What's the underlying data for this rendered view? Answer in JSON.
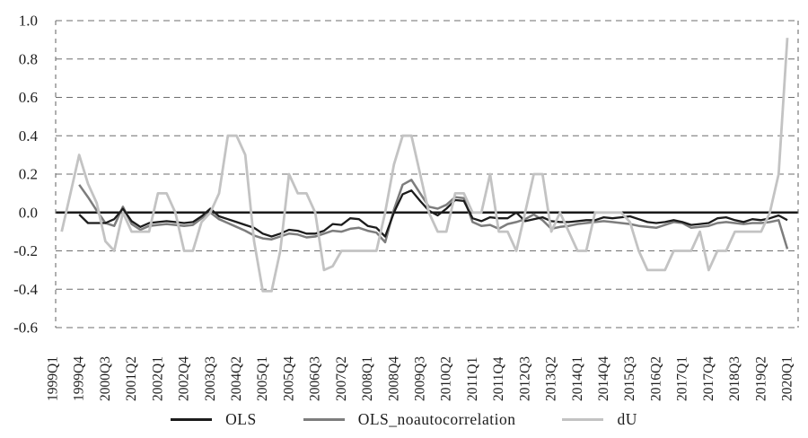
{
  "chart_data": {
    "type": "line",
    "title": "",
    "x_axis": {
      "tick_every": 3,
      "n_points": 85,
      "first_period": "1999Q1",
      "last_period": "2020Q1",
      "tick_labels": [
        "1999Q1",
        "1999Q4",
        "2000Q3",
        "2001Q2",
        "2002Q1",
        "2002Q4",
        "2003Q3",
        "2004Q2",
        "2005Q1",
        "2005Q4",
        "2006Q3",
        "2007Q2",
        "2008Q1",
        "2008Q4",
        "2009Q3",
        "2010Q2",
        "2011Q1",
        "2011Q4",
        "2012Q3",
        "2013Q2",
        "2014Q1",
        "2014Q4",
        "2015Q3",
        "2016Q2",
        "2017Q1",
        "2017Q4",
        "2018Q3",
        "2019Q2",
        "2020Q1"
      ]
    },
    "y_axis": {
      "min": -0.6,
      "max": 1.0,
      "tick_step": 0.2,
      "tick_labels": [
        "1.0",
        "0.8",
        "0.6",
        "0.4",
        "0.2",
        "0.0",
        "-0.2",
        "-0.4",
        "-0.6"
      ]
    },
    "grid": "dashed-horizontal-with-dashed-frame",
    "zero_line": true,
    "legend_position": "bottom",
    "colors": {
      "grid": "#6e6e6e",
      "zero_line": "#1a1a1a",
      "text": "#1c1c1c"
    },
    "series": [
      {
        "name": "OLS_noautocorrelation",
        "color": "#7d7d7d",
        "stroke_width": 2.5,
        "values": [
          null,
          null,
          null,
          0.145,
          0.08,
          0.01,
          -0.055,
          -0.07,
          0.03,
          -0.06,
          -0.09,
          -0.07,
          -0.065,
          -0.06,
          -0.065,
          -0.07,
          -0.065,
          -0.03,
          0.0,
          -0.035,
          -0.055,
          -0.075,
          -0.095,
          -0.12,
          -0.135,
          -0.14,
          -0.125,
          -0.11,
          -0.115,
          -0.13,
          -0.125,
          -0.11,
          -0.095,
          -0.1,
          -0.085,
          -0.08,
          -0.095,
          -0.105,
          -0.155,
          0.015,
          0.145,
          0.17,
          0.1,
          0.03,
          0.02,
          0.04,
          0.08,
          0.075,
          -0.05,
          -0.07,
          -0.065,
          -0.085,
          -0.06,
          -0.05,
          -0.035,
          -0.01,
          -0.04,
          -0.085,
          -0.075,
          -0.07,
          -0.06,
          -0.055,
          -0.05,
          -0.045,
          -0.05,
          -0.055,
          -0.06,
          -0.07,
          -0.075,
          -0.08,
          -0.065,
          -0.05,
          -0.055,
          -0.08,
          -0.075,
          -0.07,
          -0.055,
          -0.05,
          -0.055,
          -0.06,
          -0.055,
          -0.055,
          -0.05,
          -0.04,
          -0.19
        ]
      },
      {
        "name": "OLS",
        "color": "#1c1c1c",
        "stroke_width": 2.3,
        "values": [
          null,
          null,
          null,
          -0.01,
          -0.055,
          -0.055,
          -0.055,
          -0.035,
          0.02,
          -0.045,
          -0.075,
          -0.055,
          -0.05,
          -0.045,
          -0.05,
          -0.055,
          -0.05,
          -0.02,
          0.02,
          -0.02,
          -0.035,
          -0.05,
          -0.065,
          -0.08,
          -0.11,
          -0.125,
          -0.11,
          -0.09,
          -0.095,
          -0.11,
          -0.11,
          -0.095,
          -0.06,
          -0.065,
          -0.03,
          -0.035,
          -0.07,
          -0.08,
          -0.125,
          0.0,
          0.095,
          0.115,
          0.06,
          0.01,
          -0.015,
          0.02,
          0.065,
          0.06,
          -0.03,
          -0.045,
          -0.025,
          -0.03,
          -0.03,
          0.0,
          -0.045,
          -0.035,
          -0.025,
          -0.045,
          -0.05,
          -0.05,
          -0.045,
          -0.04,
          -0.04,
          -0.025,
          -0.03,
          -0.025,
          -0.02,
          -0.035,
          -0.05,
          -0.055,
          -0.05,
          -0.04,
          -0.05,
          -0.065,
          -0.06,
          -0.055,
          -0.03,
          -0.025,
          -0.04,
          -0.05,
          -0.035,
          -0.04,
          -0.03,
          -0.015,
          -0.04
        ]
      },
      {
        "name": "dU",
        "color": "#c3c3c3",
        "stroke_width": 2.8,
        "values": [
          null,
          -0.1,
          0.1,
          0.3,
          0.15,
          0.05,
          -0.15,
          -0.2,
          0.0,
          -0.1,
          -0.1,
          -0.1,
          0.1,
          0.1,
          0.0,
          -0.2,
          -0.2,
          -0.05,
          0.0,
          0.1,
          0.4,
          0.4,
          0.3,
          -0.15,
          -0.41,
          -0.41,
          -0.2,
          0.2,
          0.1,
          0.1,
          0.0,
          -0.3,
          -0.28,
          -0.2,
          -0.2,
          -0.2,
          -0.2,
          -0.2,
          0.0,
          0.25,
          0.4,
          0.4,
          0.2,
          0.0,
          -0.1,
          -0.1,
          0.1,
          0.1,
          0.0,
          0.0,
          0.2,
          -0.1,
          -0.1,
          -0.2,
          0.0,
          0.2,
          0.2,
          -0.1,
          0.0,
          -0.1,
          -0.2,
          -0.2,
          0.0,
          0.0,
          0.0,
          0.0,
          -0.05,
          -0.2,
          -0.3,
          -0.3,
          -0.3,
          -0.2,
          -0.2,
          -0.2,
          -0.1,
          -0.3,
          -0.2,
          -0.2,
          -0.1,
          -0.1,
          -0.1,
          -0.1,
          0.0,
          0.2,
          0.91
        ]
      }
    ]
  },
  "legend": {
    "items": [
      {
        "label": "OLS"
      },
      {
        "label": "OLS_noautocorrelation"
      },
      {
        "label": "dU"
      }
    ]
  }
}
